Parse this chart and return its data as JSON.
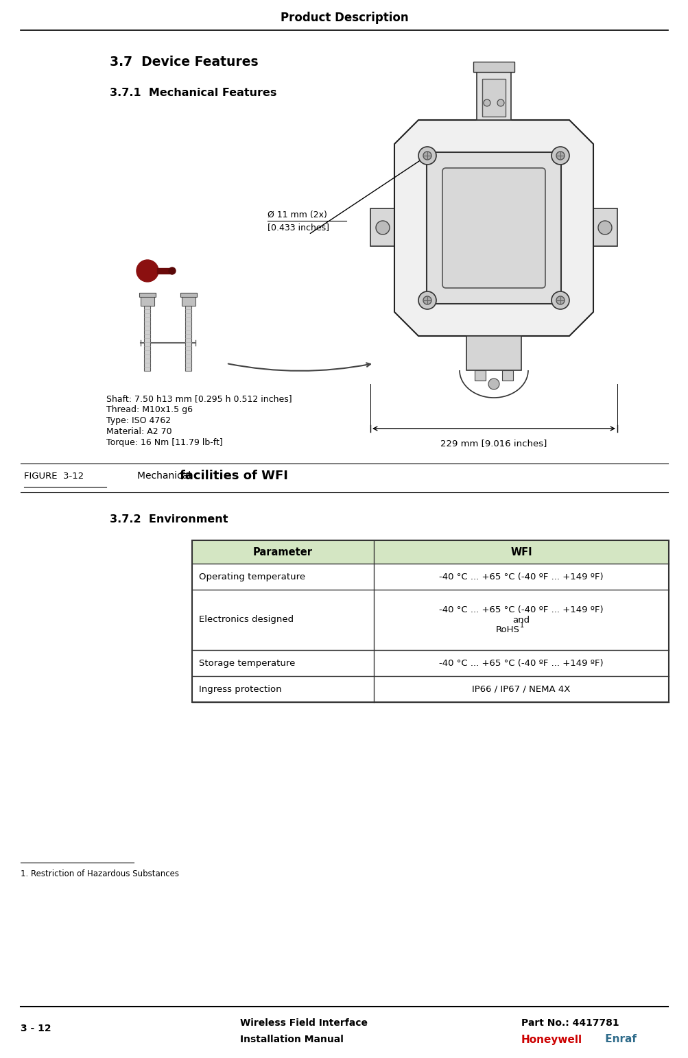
{
  "page_title": "Product Description",
  "section_title": "3.7  Device Features",
  "subsection_1": "3.7.1  Mechanical Features",
  "figure_label": "FIGURE  3-12",
  "figure_caption_normal": "Mechanical ",
  "figure_caption_bold": "facilities of WFI",
  "shaft_text_lines": [
    "Shaft: 7.50 h13 mm [0.295 h 0.512 inches]",
    "Thread: M10x1.5 g6",
    "Type: ISO 4762",
    "Material: A2 70",
    "Torque: 16 Nm [11.79 lb-ft]"
  ],
  "dim_229": "229 mm [9.016 inches]",
  "dim_11_line1": "Ø 11 mm (2x)",
  "dim_11_line2": "[0.433 inches]",
  "subsection_2": "3.7.2  Environment",
  "table_header": [
    "Parameter",
    "WFI"
  ],
  "table_rows": [
    [
      "Operating temperature",
      "-40 °C ... +65 °C (-40 ºF ... +149 ºF)"
    ],
    [
      "Electronics designed",
      "-40 °C ... +65 °C (-40 ºF ... +149 ºF)\nand\nRoHS¹"
    ],
    [
      "Storage temperature",
      "-40 °C ... +65 °C (-40 ºF ... +149 ºF)"
    ],
    [
      "Ingress protection",
      "IP66 / IP67 / NEMA 4X"
    ]
  ],
  "table_header_bg": "#d4e6c3",
  "table_border_color": "#333333",
  "footnote": "1. Restriction of Hazardous Substances",
  "footer_left_top": "Wireless Field Interface",
  "footer_left_bot": "Installation Manual",
  "footer_center_top": "Part No.: 4417781",
  "footer_page": "3 - 12",
  "footer_honeywell": "Honeywell",
  "footer_enraf": " Enraf",
  "honeywell_color": "#cc0000",
  "enraf_color": "#2e6b8a",
  "bg_color": "#ffffff",
  "text_color": "#000000",
  "figsize": [
    10.04,
    15.43
  ],
  "dpi": 100
}
